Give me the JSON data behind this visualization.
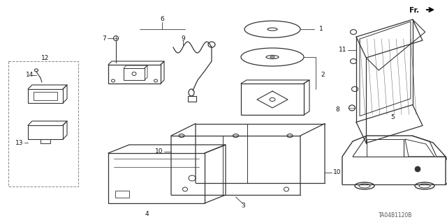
{
  "bg_color": "#ffffff",
  "line_color": "#333333",
  "diagram_code": "TA04B1120B",
  "figsize": [
    6.4,
    3.19
  ],
  "dpi": 100
}
